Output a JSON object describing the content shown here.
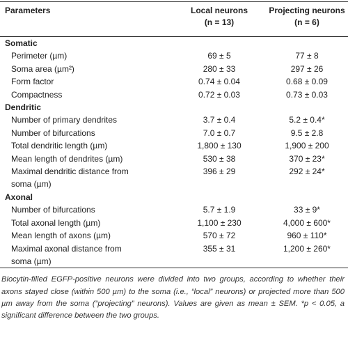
{
  "table": {
    "header": {
      "parameters": "Parameters",
      "local": [
        "Local neurons",
        "(n = 13)"
      ],
      "projecting": [
        "Projecting neurons",
        "(n = 6)"
      ]
    },
    "sections": [
      {
        "title": "Somatic",
        "rows": [
          [
            "Perimeter (µm)",
            "69 ± 5",
            "77 ± 8"
          ],
          [
            "Soma area (µm²)",
            "280 ± 33",
            "297 ± 26"
          ],
          [
            "Form factor",
            "0.74 ± 0.04",
            "0.68 ± 0.09"
          ],
          [
            "Compactness",
            "0.72 ± 0.03",
            "0.73 ± 0.03"
          ]
        ]
      },
      {
        "title": "Dendritic",
        "rows": [
          [
            "Number of primary dendrites",
            "3.7 ± 0.4",
            "5.2 ± 0.4*"
          ],
          [
            "Number of bifurcations",
            "7.0 ± 0.7",
            "9.5 ± 2.8"
          ],
          [
            "Total dendritic length (µm)",
            "1,800 ± 130",
            "1,900 ± 200"
          ],
          [
            "Mean length of dendrites (µm)",
            "530 ± 38",
            "370 ± 23*"
          ],
          [
            "Maximal dendritic distance from soma (µm)",
            "396 ± 29",
            "292 ± 24*"
          ]
        ]
      },
      {
        "title": "Axonal",
        "rows": [
          [
            "Number of bifurcations",
            "5.7 ± 1.9",
            "33 ± 9*"
          ],
          [
            "Total axonal length (µm)",
            "1,100 ± 230",
            "4,000 ± 600*"
          ],
          [
            "Mean length of axons (µm)",
            "570 ± 72",
            "960 ± 110*"
          ],
          [
            "Maximal axonal distance from soma (µm)",
            "355 ± 31",
            "1,200 ± 260*"
          ]
        ]
      }
    ],
    "footnote": "Biocytin-filled EGFP-positive neurons were divided into two groups, according to whether their axons stayed close (within 500 µm) to the soma (i.e., “local” neurons) or projected more than 500 µm away from the soma (“projecting” neurons). Values are given as mean ± SEM. *p < 0.05, a significant difference between the two groups."
  }
}
